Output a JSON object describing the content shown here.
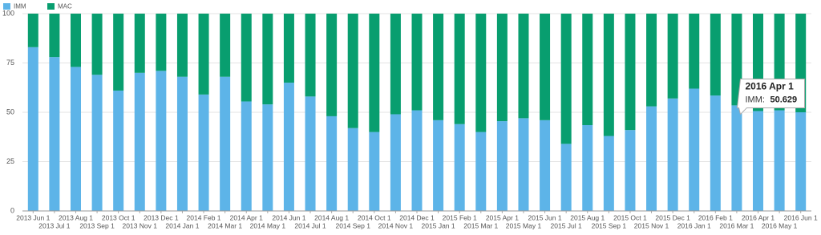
{
  "chart_data": {
    "type": "stacked_bar",
    "categories": [
      "2013 Jun 1",
      "2013 Jul 1",
      "2013 Aug 1",
      "2013 Sep 1",
      "2013 Oct 1",
      "2013 Nov 1",
      "2013 Dec 1",
      "2014 Jan 1",
      "2014 Feb 1",
      "2014 Mar 1",
      "2014 Apr 1",
      "2014 May 1",
      "2014 Jun 1",
      "2014 Jul 1",
      "2014 Aug 1",
      "2014 Sep 1",
      "2014 Oct 1",
      "2014 Nov 1",
      "2014 Dec 1",
      "2015 Jan 1",
      "2015 Feb 1",
      "2015 Mar 1",
      "2015 Apr 1",
      "2015 May 1",
      "2015 Jun 1",
      "2015 Jul 1",
      "2015 Aug 1",
      "2015 Sep 1",
      "2015 Oct 1",
      "2015 Nov 1",
      "2015 Dec 1",
      "2016 Jan 1",
      "2016 Feb 1",
      "2016 Mar 1",
      "2016 Apr 1",
      "2016 May 1",
      "2016 Jun 1"
    ],
    "series": [
      {
        "name": "IMM",
        "color": "#5db4e8",
        "values": [
          83,
          78,
          73,
          69,
          61,
          70,
          71,
          68,
          59,
          68,
          55.5,
          54,
          65,
          58,
          48,
          42,
          40,
          49,
          51,
          46,
          44,
          40,
          45.5,
          47,
          46,
          34,
          43.5,
          38,
          41,
          53,
          57,
          62,
          58.5,
          53.5,
          50.629,
          51,
          50
        ]
      },
      {
        "name": "MAC",
        "color": "#089e6f",
        "values": [
          17,
          22,
          27,
          31,
          39,
          30,
          29,
          32,
          41,
          32,
          44.5,
          46,
          35,
          42,
          52,
          58,
          60,
          51,
          49,
          54,
          56,
          60,
          54.5,
          53,
          54,
          66,
          56.5,
          62,
          59,
          47,
          43,
          38,
          41.5,
          46.5,
          49.371,
          49,
          50
        ]
      }
    ],
    "ylim": [
      0,
      100
    ],
    "yticks": [
      0,
      25,
      50,
      75,
      100
    ],
    "grid": true,
    "legend": "top-left",
    "tooltip": {
      "index": 34,
      "series": 0,
      "series_label": "IMM:"
    }
  }
}
